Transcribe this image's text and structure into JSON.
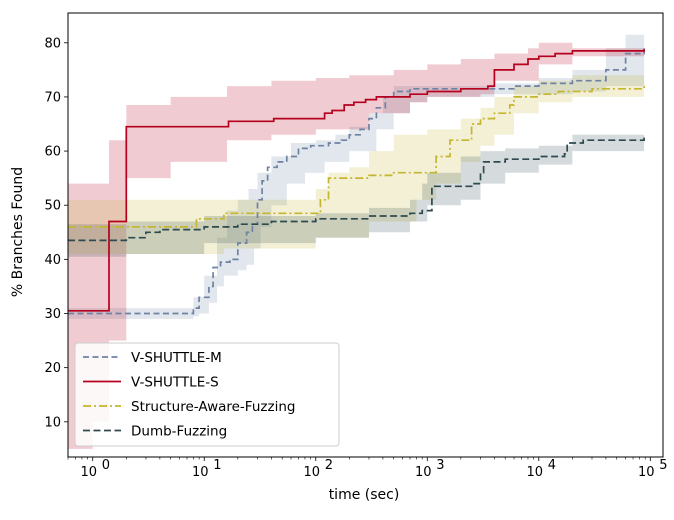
{
  "chart_data": {
    "type": "line",
    "title": "",
    "xlabel": "time (sec)",
    "ylabel": "% Branches Found",
    "xscale": "log",
    "xlim": [
      0.6,
      130000
    ],
    "ylim": [
      3.5,
      85.5
    ],
    "x_ticks": [
      1,
      10,
      100,
      1000,
      10000,
      100000
    ],
    "x_tick_labels": [
      {
        "base": "10",
        "exp": "0"
      },
      {
        "base": "10",
        "exp": "1"
      },
      {
        "base": "10",
        "exp": "2"
      },
      {
        "base": "10",
        "exp": "3"
      },
      {
        "base": "10",
        "exp": "4"
      },
      {
        "base": "10",
        "exp": "5"
      }
    ],
    "y_ticks": [
      10,
      20,
      30,
      40,
      50,
      60,
      70,
      80
    ],
    "y_tick_labels": [
      "10",
      "20",
      "30",
      "40",
      "50",
      "60",
      "70",
      "80"
    ],
    "legend_position": "lower-left",
    "series": [
      {
        "name": "V-SHUTTLE-M",
        "color": "#6e82a3",
        "dash": "6,3.5",
        "points": [
          [
            0.6,
            30
          ],
          [
            2,
            30
          ],
          [
            7,
            30
          ],
          [
            8,
            31
          ],
          [
            9,
            33
          ],
          [
            11,
            35
          ],
          [
            12,
            38.5
          ],
          [
            14,
            39.5
          ],
          [
            17,
            40
          ],
          [
            20,
            43
          ],
          [
            24,
            45
          ],
          [
            27,
            46.5
          ],
          [
            30,
            51
          ],
          [
            33,
            54.5
          ],
          [
            37,
            57
          ],
          [
            45,
            58
          ],
          [
            55,
            59
          ],
          [
            70,
            60.5
          ],
          [
            90,
            61
          ],
          [
            130,
            61.5
          ],
          [
            170,
            62
          ],
          [
            200,
            63
          ],
          [
            250,
            64
          ],
          [
            300,
            66
          ],
          [
            350,
            68
          ],
          [
            420,
            70
          ],
          [
            500,
            71
          ],
          [
            700,
            71.5
          ],
          [
            1000,
            71.5
          ],
          [
            2000,
            71.5
          ],
          [
            4000,
            71.5
          ],
          [
            6000,
            72
          ],
          [
            10000,
            72.5
          ],
          [
            20000,
            73
          ],
          [
            40000,
            75
          ],
          [
            60000,
            78
          ],
          [
            88000,
            79
          ]
        ],
        "lower": [
          [
            0.6,
            29
          ],
          [
            7,
            29
          ],
          [
            8,
            29.5
          ],
          [
            9,
            30
          ],
          [
            11,
            32
          ],
          [
            13,
            35
          ],
          [
            15,
            37
          ],
          [
            20,
            38
          ],
          [
            24,
            39
          ],
          [
            28,
            42
          ],
          [
            32,
            46
          ],
          [
            40,
            50
          ],
          [
            55,
            54
          ],
          [
            80,
            56
          ],
          [
            120,
            58
          ],
          [
            200,
            60
          ],
          [
            350,
            64
          ],
          [
            500,
            67
          ],
          [
            700,
            69
          ],
          [
            1000,
            70
          ],
          [
            4000,
            70.5
          ],
          [
            20000,
            71
          ],
          [
            40000,
            72
          ],
          [
            88000,
            76
          ]
        ],
        "upper": [
          [
            0.6,
            31
          ],
          [
            7,
            31
          ],
          [
            8,
            33
          ],
          [
            10,
            37
          ],
          [
            13,
            44
          ],
          [
            16,
            49
          ],
          [
            20,
            51
          ],
          [
            25,
            53
          ],
          [
            30,
            56
          ],
          [
            40,
            59
          ],
          [
            60,
            61.5
          ],
          [
            100,
            62
          ],
          [
            150,
            63
          ],
          [
            200,
            64.5
          ],
          [
            300,
            67
          ],
          [
            400,
            70
          ],
          [
            500,
            72
          ],
          [
            1000,
            72
          ],
          [
            4000,
            72.5
          ],
          [
            10000,
            73.5
          ],
          [
            20000,
            75
          ],
          [
            40000,
            79
          ],
          [
            60000,
            81.5
          ],
          [
            88000,
            81.5
          ]
        ]
      },
      {
        "name": "V-SHUTTLE-S",
        "color": "#b5001e",
        "dash": "",
        "points": [
          [
            0.6,
            30.5
          ],
          [
            1,
            30.5
          ],
          [
            1.4,
            47
          ],
          [
            2,
            64.5
          ],
          [
            5,
            64.5
          ],
          [
            16,
            64.5
          ],
          [
            16.5,
            65.5
          ],
          [
            40,
            65.5
          ],
          [
            42,
            66
          ],
          [
            100,
            66
          ],
          [
            120,
            67
          ],
          [
            140,
            67.5
          ],
          [
            180,
            68.5
          ],
          [
            220,
            69
          ],
          [
            280,
            69.5
          ],
          [
            350,
            70
          ],
          [
            700,
            70.5
          ],
          [
            1000,
            71
          ],
          [
            2000,
            71.5
          ],
          [
            3500,
            72
          ],
          [
            4000,
            75
          ],
          [
            6000,
            76
          ],
          [
            8000,
            77
          ],
          [
            10000,
            77.5
          ],
          [
            14000,
            78
          ],
          [
            20000,
            78.5
          ],
          [
            88000,
            78.8
          ]
        ],
        "lower": [
          [
            0.6,
            5
          ],
          [
            1,
            10
          ],
          [
            1.4,
            25
          ],
          [
            2,
            55
          ],
          [
            5,
            58
          ],
          [
            16,
            62
          ],
          [
            40,
            63
          ],
          [
            100,
            64
          ],
          [
            300,
            67
          ],
          [
            700,
            69
          ],
          [
            1000,
            70
          ],
          [
            3000,
            70.5
          ],
          [
            4000,
            73
          ],
          [
            10000,
            76
          ],
          [
            20000,
            77.5
          ],
          [
            88000,
            78
          ]
        ],
        "upper": [
          [
            0.6,
            54
          ],
          [
            1,
            54
          ],
          [
            1.4,
            62
          ],
          [
            2,
            68.5
          ],
          [
            5,
            70
          ],
          [
            16,
            72
          ],
          [
            40,
            73
          ],
          [
            100,
            73.5
          ],
          [
            200,
            74
          ],
          [
            500,
            75
          ],
          [
            1000,
            76
          ],
          [
            2000,
            77
          ],
          [
            4000,
            78
          ],
          [
            8000,
            79
          ],
          [
            10000,
            80
          ],
          [
            20000,
            79
          ],
          [
            88000,
            79.5
          ]
        ]
      },
      {
        "name": "Structure-Aware-Fuzzing",
        "color": "#c4b62e",
        "dash": "8,3,2,3",
        "points": [
          [
            0.6,
            46
          ],
          [
            5,
            46
          ],
          [
            8,
            46
          ],
          [
            8.5,
            47.5
          ],
          [
            14,
            47.5
          ],
          [
            15,
            48.5
          ],
          [
            100,
            48.5
          ],
          [
            110,
            51
          ],
          [
            130,
            55
          ],
          [
            200,
            55
          ],
          [
            300,
            55.5
          ],
          [
            500,
            56
          ],
          [
            1100,
            56
          ],
          [
            1200,
            59
          ],
          [
            1600,
            62
          ],
          [
            2500,
            65
          ],
          [
            3000,
            66
          ],
          [
            4000,
            67
          ],
          [
            5500,
            68.5
          ],
          [
            6000,
            70
          ],
          [
            10000,
            70.5
          ],
          [
            15000,
            71
          ],
          [
            30000,
            71.5
          ],
          [
            50000,
            71.5
          ],
          [
            88000,
            72
          ]
        ],
        "lower": [
          [
            0.6,
            41
          ],
          [
            8,
            41
          ],
          [
            15,
            42
          ],
          [
            100,
            44
          ],
          [
            130,
            44
          ],
          [
            300,
            47
          ],
          [
            800,
            51
          ],
          [
            1200,
            54
          ],
          [
            2000,
            58
          ],
          [
            3000,
            61
          ],
          [
            4000,
            63
          ],
          [
            6000,
            67
          ],
          [
            10000,
            69
          ],
          [
            20000,
            70
          ],
          [
            88000,
            70
          ]
        ],
        "upper": [
          [
            0.6,
            51
          ],
          [
            8,
            51
          ],
          [
            15,
            51
          ],
          [
            100,
            53
          ],
          [
            130,
            56
          ],
          [
            200,
            57
          ],
          [
            300,
            60
          ],
          [
            500,
            63
          ],
          [
            1000,
            64
          ],
          [
            2000,
            66
          ],
          [
            3000,
            68
          ],
          [
            4000,
            70
          ],
          [
            6000,
            72
          ],
          [
            10000,
            73
          ],
          [
            20000,
            74
          ],
          [
            88000,
            74
          ]
        ]
      },
      {
        "name": "Dumb-Fuzzing",
        "color": "#2e4a4f",
        "dash": "7,3.5",
        "points": [
          [
            0.6,
            43.5
          ],
          [
            1.5,
            43.5
          ],
          [
            2,
            44
          ],
          [
            3,
            45
          ],
          [
            4,
            45.5
          ],
          [
            7,
            45.5
          ],
          [
            10,
            46
          ],
          [
            20,
            46.5
          ],
          [
            40,
            47
          ],
          [
            80,
            47
          ],
          [
            100,
            47.5
          ],
          [
            250,
            47.5
          ],
          [
            300,
            48
          ],
          [
            500,
            48
          ],
          [
            700,
            48.5
          ],
          [
            900,
            49
          ],
          [
            1100,
            53.5
          ],
          [
            2500,
            54
          ],
          [
            3000,
            56
          ],
          [
            3200,
            58
          ],
          [
            5000,
            58.5
          ],
          [
            10000,
            59
          ],
          [
            17000,
            59.5
          ],
          [
            18000,
            61.5
          ],
          [
            25000,
            62
          ],
          [
            88000,
            62.5
          ]
        ],
        "lower": [
          [
            0.6,
            40.5
          ],
          [
            2,
            41
          ],
          [
            10,
            43
          ],
          [
            100,
            44
          ],
          [
            300,
            45
          ],
          [
            700,
            47
          ],
          [
            1000,
            50
          ],
          [
            2000,
            51
          ],
          [
            3000,
            54
          ],
          [
            5000,
            56
          ],
          [
            10000,
            57.5
          ],
          [
            20000,
            60
          ],
          [
            88000,
            61
          ]
        ],
        "upper": [
          [
            0.6,
            46.5
          ],
          [
            2,
            47
          ],
          [
            10,
            48
          ],
          [
            100,
            48.5
          ],
          [
            300,
            49.5
          ],
          [
            700,
            51
          ],
          [
            900,
            54
          ],
          [
            1000,
            56
          ],
          [
            2000,
            59
          ],
          [
            3000,
            60
          ],
          [
            5000,
            60.5
          ],
          [
            10000,
            61
          ],
          [
            20000,
            63
          ],
          [
            88000,
            63.5
          ]
        ]
      }
    ]
  }
}
